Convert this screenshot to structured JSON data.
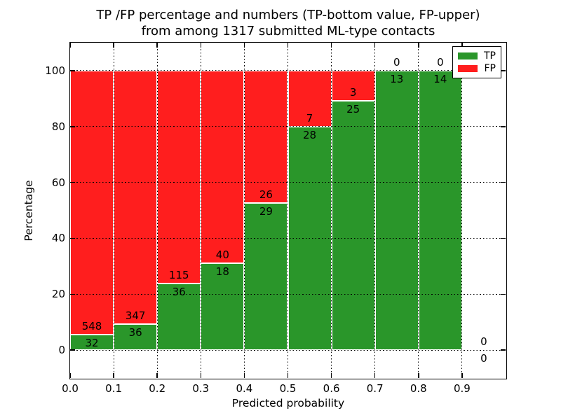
{
  "title": {
    "line1": "TP /FP percentage and numbers (TP-bottom value, FP-upper)",
    "line2": "from among 1317 submitted ML-type contacts"
  },
  "chart_data": {
    "type": "bar",
    "variant": "stacked-percentage",
    "title": "TP /FP percentage and numbers (TP-bottom value, FP-upper)\nfrom among 1317 submitted ML-type contacts",
    "xlabel": "Predicted probability",
    "ylabel": "Percentage",
    "bins": [
      0.0,
      0.1,
      0.2,
      0.3,
      0.4,
      0.5,
      0.6,
      0.7,
      0.8,
      0.9
    ],
    "bin_width": 0.1,
    "series": [
      {
        "name": "TP",
        "color": "#2A962A",
        "values": [
          32,
          36,
          36,
          18,
          29,
          28,
          25,
          13,
          14,
          0
        ]
      },
      {
        "name": "FP",
        "color": "#FF1E1E",
        "values": [
          548,
          347,
          115,
          40,
          26,
          7,
          3,
          0,
          0,
          0
        ]
      }
    ],
    "tp_percent": [
      5.52,
      9.4,
      23.84,
      31.03,
      52.73,
      80.0,
      89.29,
      100,
      100,
      0
    ],
    "xtick_labels": [
      "0.0",
      "0.1",
      "0.2",
      "0.3",
      "0.4",
      "0.5",
      "0.6",
      "0.7",
      "0.8",
      "0.9"
    ],
    "xtick_values": [
      0.0,
      0.1,
      0.2,
      0.3,
      0.4,
      0.5,
      0.6,
      0.7,
      0.8,
      0.9
    ],
    "ytick_labels": [
      "0",
      "20",
      "40",
      "60",
      "80",
      "100"
    ],
    "ytick_values": [
      0,
      20,
      40,
      60,
      80,
      100
    ],
    "xlim": [
      0,
      1.0
    ],
    "ylim": [
      -10,
      110
    ],
    "grid": true,
    "grid_style": "dotted",
    "legend": {
      "position": "upper right",
      "entries": [
        "TP",
        "FP"
      ]
    }
  }
}
